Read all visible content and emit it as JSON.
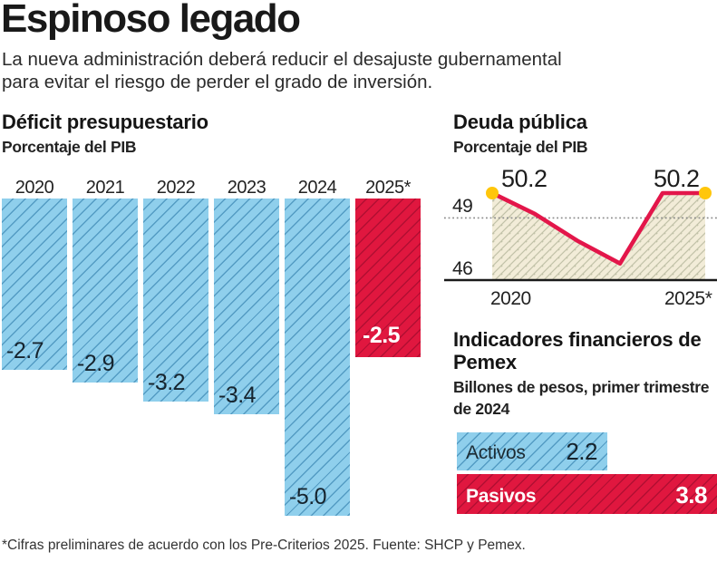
{
  "header": {
    "title": "Espinoso legado",
    "subtitle": "La nueva administración deberá reducir el desajuste gubernamental para evitar el riesgo de perder el grado de inversión."
  },
  "colors": {
    "bar_blue": "#8FCFEC",
    "bar_red": "#E0173F",
    "line_red": "#E3164A",
    "area_beige": "#F2ECD8",
    "area_hatch": "#C2C2A8",
    "dot_yellow": "#FFC60B",
    "axis_dark": "#1a1a1a",
    "grid_dotted": "#8a8a8a"
  },
  "chart_data": [
    {
      "id": "deficit",
      "type": "bar",
      "title": "Déficit presupuestario",
      "subtitle": "Porcentaje del PIB",
      "categories": [
        "2020",
        "2021",
        "2022",
        "2023",
        "2024",
        "2025*"
      ],
      "values": [
        -2.7,
        -2.9,
        -3.2,
        -3.4,
        -5.0,
        -2.5
      ],
      "value_labels": [
        "-2.7",
        "-2.9",
        "-3.2",
        "-3.4",
        "-5.0",
        "-2.5"
      ],
      "highlight_index": 5,
      "ylim": [
        -5.0,
        0
      ],
      "orientation": "columns-hanging-down",
      "grid": false,
      "legend": false
    },
    {
      "id": "debt",
      "type": "line",
      "title": "Deuda pública",
      "subtitle": "Porcentaje del PIB",
      "x": [
        2020,
        2021,
        2022,
        2023,
        2024,
        2025
      ],
      "values": [
        50.2,
        49.2,
        47.9,
        46.8,
        50.2,
        50.2
      ],
      "endpoint_labels": [
        "50.2",
        "50.2"
      ],
      "yticks": [
        {
          "value": 49,
          "label": "49"
        },
        {
          "value": 46,
          "label": "46"
        }
      ],
      "xticks": [
        {
          "x": 2020,
          "label": "2020"
        },
        {
          "x": 2025,
          "label": "2025*"
        }
      ],
      "ylim": [
        46,
        51.2
      ],
      "baseline": 46,
      "dotted_gridline": 49,
      "area_fill": true,
      "endpoint_dots": true,
      "grid": "single-dotted",
      "legend": false
    },
    {
      "id": "pemex",
      "type": "bar-horizontal",
      "title": "Indicadores financieros de Pemex",
      "subtitle": "Billones de pesos, primer trimestre de 2024",
      "categories": [
        "Activos",
        "Pasivos"
      ],
      "values": [
        2.2,
        3.8
      ],
      "value_labels": [
        "2.2",
        "3.8"
      ],
      "highlight_index": 1,
      "xlim": [
        0,
        3.8
      ],
      "grid": false,
      "legend": false
    }
  ],
  "footer": {
    "note": "*Cifras preliminares de acuerdo con los Pre-Criterios 2025. Fuente: SHCP y Pemex."
  }
}
